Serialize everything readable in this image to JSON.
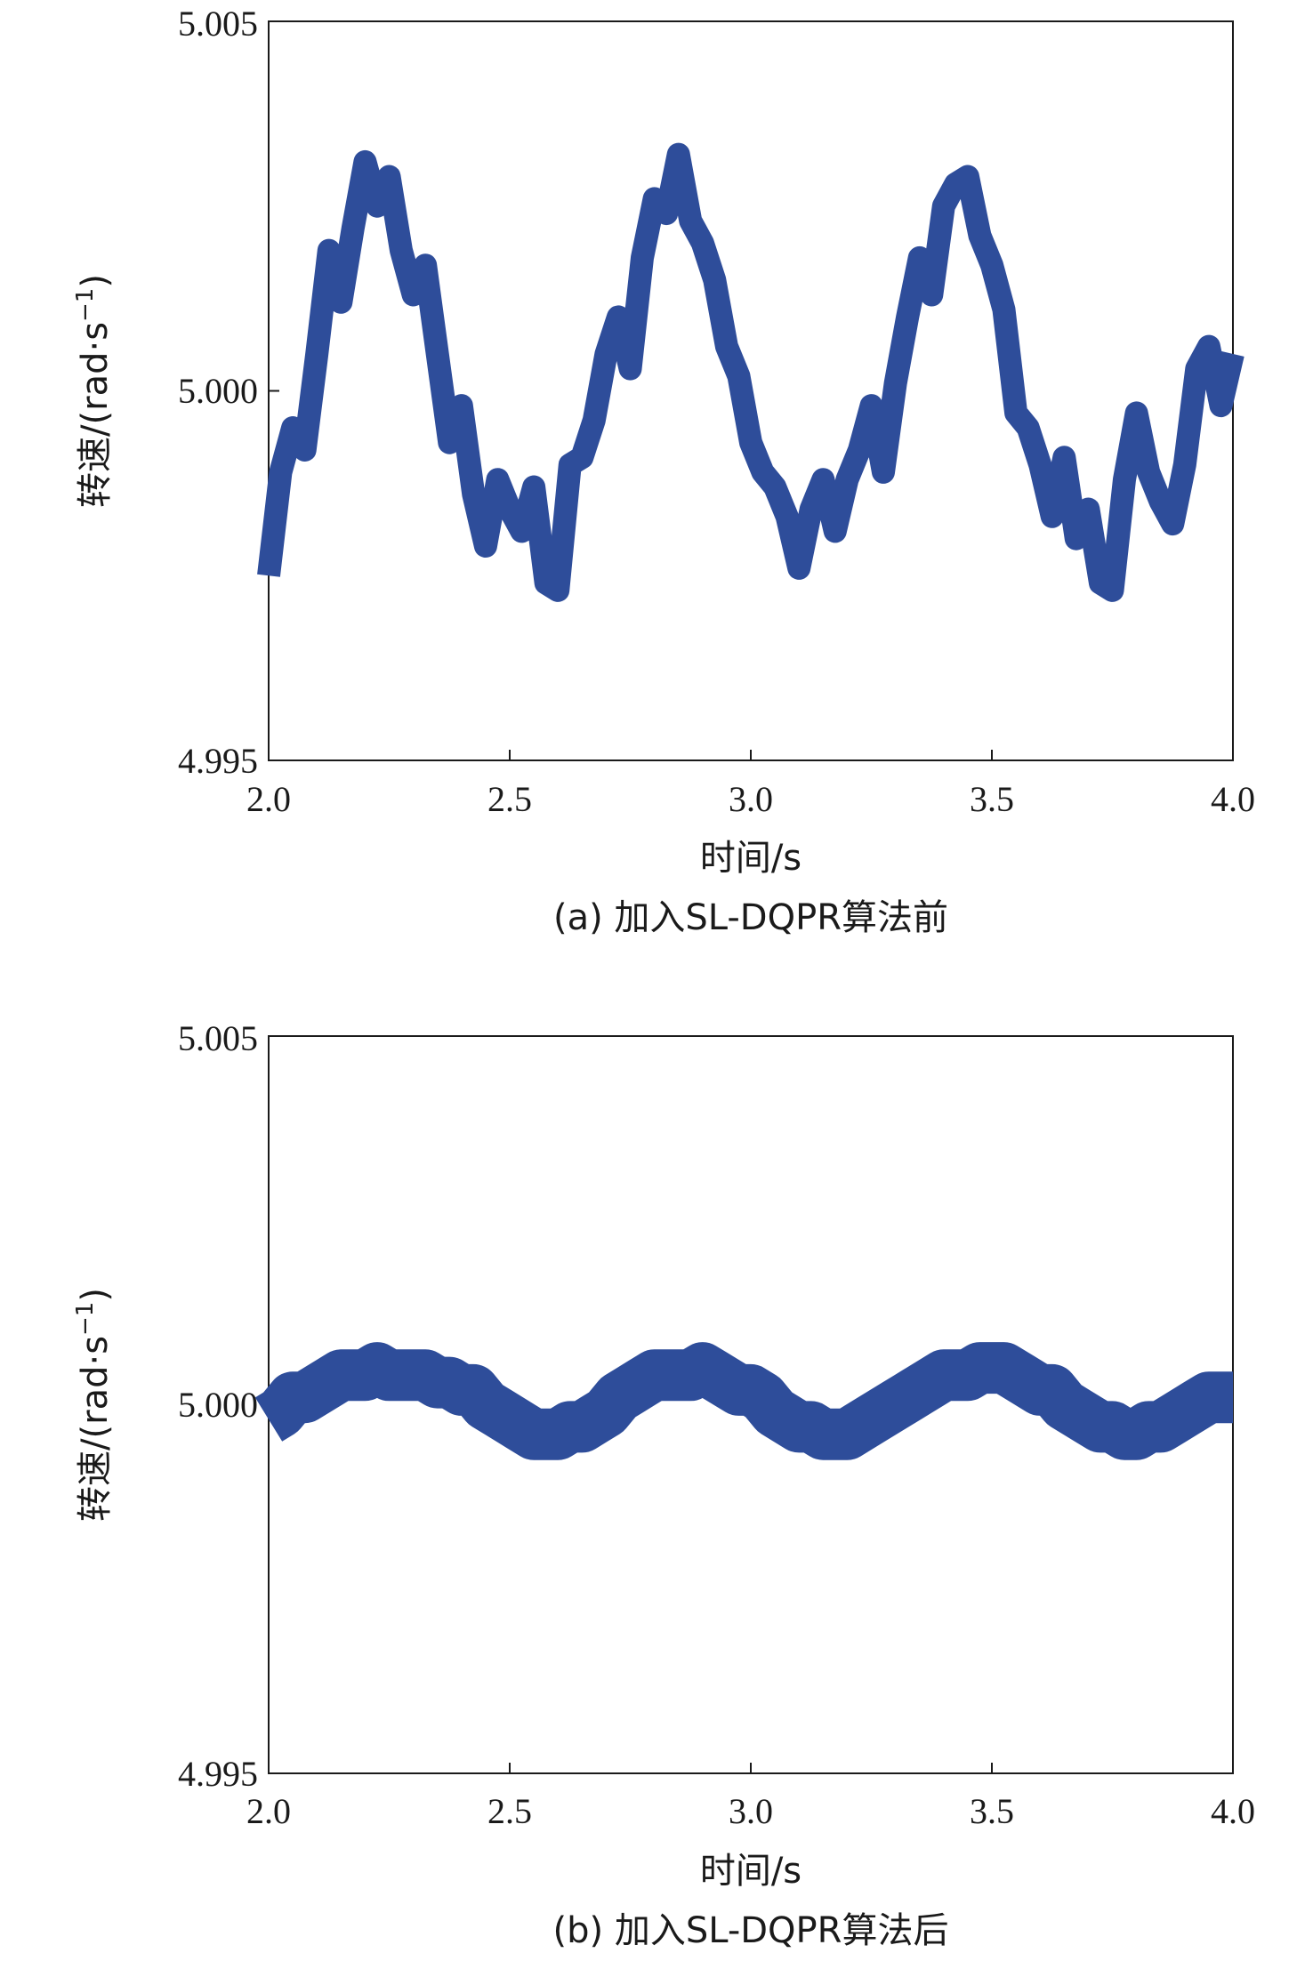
{
  "colors": {
    "series": "#2e4d9a",
    "axis": "#1a1a1a"
  },
  "chart_data": [
    {
      "type": "line",
      "caption": "(a) 加入SL-DQPR算法前",
      "xlabel": "时间/s",
      "ylabel": "转速/(rad·s",
      "ylabel_sup": "−1",
      "ylabel_close": ")",
      "xlim": [
        2.0,
        4.0
      ],
      "ylim": [
        4.995,
        5.005
      ],
      "xticks": [
        2.0,
        2.5,
        3.0,
        3.5,
        4.0
      ],
      "xtick_labels": [
        "2.0",
        "2.5",
        "3.0",
        "3.5",
        "4.0"
      ],
      "yticks": [
        4.995,
        5.0,
        5.005
      ],
      "ytick_labels": [
        "4.995",
        "5.000",
        "5.005"
      ],
      "series": [
        {
          "x": [
            2.0,
            2.025,
            2.05,
            2.075,
            2.1,
            2.125,
            2.15,
            2.175,
            2.2,
            2.225,
            2.25,
            2.275,
            2.3,
            2.325,
            2.35,
            2.375,
            2.4,
            2.425,
            2.45,
            2.475,
            2.5,
            2.525,
            2.55,
            2.575,
            2.6,
            2.625,
            2.65,
            2.675,
            2.7,
            2.725,
            2.75,
            2.775,
            2.8,
            2.825,
            2.85,
            2.875,
            2.9,
            2.925,
            2.95,
            2.975,
            3.0,
            3.025,
            3.05,
            3.075,
            3.1,
            3.125,
            3.15,
            3.175,
            3.2,
            3.225,
            3.25,
            3.275,
            3.3,
            3.325,
            3.35,
            3.375,
            3.4,
            3.425,
            3.45,
            3.475,
            3.5,
            3.525,
            3.55,
            3.575,
            3.6,
            3.625,
            3.65,
            3.675,
            3.7,
            3.725,
            3.75,
            3.775,
            3.8,
            3.825,
            3.85,
            3.875,
            3.9,
            3.925,
            3.95,
            3.975,
            4.0
          ],
          "y": [
            4.9975,
            4.9989,
            4.9995,
            4.9992,
            5.0005,
            5.0019,
            5.0012,
            5.0022,
            5.0031,
            5.0025,
            5.0029,
            5.0019,
            5.0013,
            5.0017,
            5.0005,
            4.9993,
            4.9998,
            4.9986,
            4.9979,
            4.9988,
            4.9984,
            4.9981,
            4.9987,
            4.9974,
            4.9973,
            4.999,
            4.9991,
            4.9996,
            5.0005,
            5.001,
            5.0003,
            5.0018,
            5.0026,
            5.0024,
            5.0032,
            5.0023,
            5.002,
            5.0015,
            5.0006,
            5.0002,
            4.9993,
            4.9989,
            4.9987,
            4.9983,
            4.9976,
            4.9984,
            4.9988,
            4.9981,
            4.9988,
            4.9992,
            4.9998,
            4.9989,
            5.0001,
            5.001,
            5.0018,
            5.0013,
            5.0025,
            5.0028,
            5.0029,
            5.0021,
            5.0017,
            5.0011,
            4.9997,
            4.9995,
            4.999,
            4.9983,
            4.9991,
            4.998,
            4.9984,
            4.9974,
            4.9973,
            4.9988,
            4.9997,
            4.9989,
            4.9985,
            4.9982,
            4.999,
            5.0003,
            5.0006,
            4.9998,
            5.0005
          ]
        }
      ]
    },
    {
      "type": "line",
      "caption": "(b) 加入SL-DQPR算法后",
      "xlabel": "时间/s",
      "ylabel": "转速/(rad·s",
      "ylabel_sup": "−1",
      "ylabel_close": ")",
      "xlim": [
        2.0,
        4.0
      ],
      "ylim": [
        4.995,
        5.005
      ],
      "xticks": [
        2.0,
        2.5,
        3.0,
        3.5,
        4.0
      ],
      "xtick_labels": [
        "2.0",
        "2.5",
        "3.0",
        "3.5",
        "4.0"
      ],
      "yticks": [
        4.995,
        5.0,
        5.005
      ],
      "ytick_labels": [
        "4.995",
        "5.000",
        "5.005"
      ],
      "series": [
        {
          "x": [
            2.0,
            2.025,
            2.05,
            2.075,
            2.1,
            2.125,
            2.15,
            2.175,
            2.2,
            2.225,
            2.25,
            2.275,
            2.3,
            2.325,
            2.35,
            2.375,
            2.4,
            2.425,
            2.45,
            2.475,
            2.5,
            2.525,
            2.55,
            2.575,
            2.6,
            2.625,
            2.65,
            2.675,
            2.7,
            2.725,
            2.75,
            2.775,
            2.8,
            2.825,
            2.85,
            2.875,
            2.9,
            2.925,
            2.95,
            2.975,
            3.0,
            3.025,
            3.05,
            3.075,
            3.1,
            3.125,
            3.15,
            3.175,
            3.2,
            3.225,
            3.25,
            3.275,
            3.3,
            3.325,
            3.35,
            3.375,
            3.4,
            3.425,
            3.45,
            3.475,
            3.5,
            3.525,
            3.55,
            3.575,
            3.6,
            3.625,
            3.65,
            3.675,
            3.7,
            3.725,
            3.75,
            3.775,
            3.8,
            3.825,
            3.85,
            3.875,
            3.9,
            3.925,
            3.95,
            3.975,
            4.0
          ],
          "y": [
            4.9998,
            4.9999,
            5.0001,
            5.0001,
            5.0002,
            5.0003,
            5.0004,
            5.0004,
            5.0004,
            5.0005,
            5.0004,
            5.0004,
            5.0004,
            5.0004,
            5.0003,
            5.0003,
            5.0002,
            5.0002,
            5.0,
            4.9999,
            4.9998,
            4.9997,
            4.9996,
            4.9996,
            4.9996,
            4.9997,
            4.9997,
            4.9998,
            4.9999,
            5.0001,
            5.0002,
            5.0003,
            5.0004,
            5.0004,
            5.0004,
            5.0004,
            5.0005,
            5.0004,
            5.0003,
            5.0002,
            5.0002,
            5.0001,
            4.9999,
            4.9998,
            4.9997,
            4.9997,
            4.9996,
            4.9996,
            4.9996,
            4.9997,
            4.9998,
            4.9999,
            5.0,
            5.0001,
            5.0002,
            5.0003,
            5.0004,
            5.0004,
            5.0004,
            5.0005,
            5.0005,
            5.0005,
            5.0004,
            5.0003,
            5.0002,
            5.0002,
            5.0,
            4.9999,
            4.9998,
            4.9997,
            4.9997,
            4.9996,
            4.9996,
            4.9997,
            4.9997,
            4.9998,
            4.9999,
            5.0,
            5.0001,
            5.0001,
            5.0001
          ]
        }
      ]
    }
  ]
}
